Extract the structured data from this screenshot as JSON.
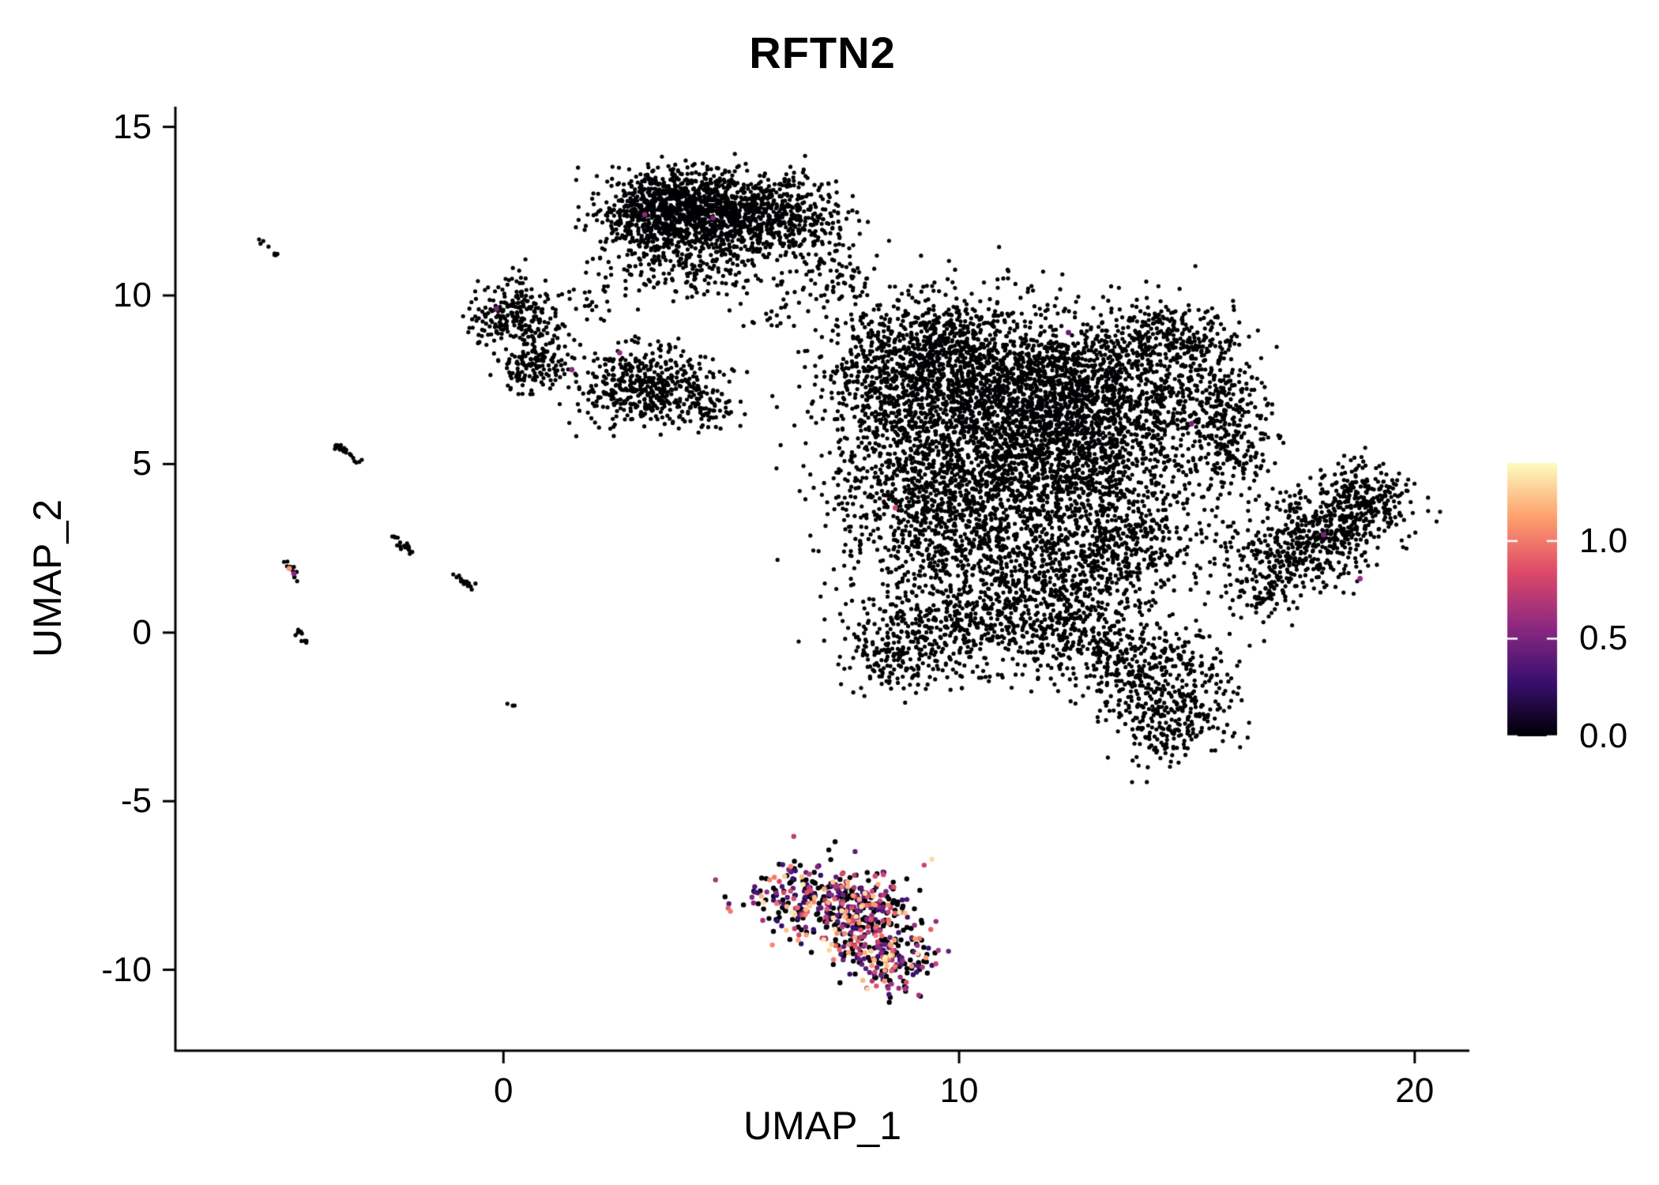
{
  "chart_data": {
    "type": "scatter",
    "title": "RFTN2",
    "xlabel": "UMAP_1",
    "ylabel": "UMAP_2",
    "xlim": [
      -7.2,
      21.2
    ],
    "ylim": [
      -12.4,
      15.6
    ],
    "grid": false,
    "background": "#ffffff",
    "axis_color": "#000000",
    "xticks": [
      {
        "v": 0,
        "label": "0"
      },
      {
        "v": 10,
        "label": "10"
      },
      {
        "v": 20,
        "label": "20"
      }
    ],
    "yticks": [
      {
        "v": 15,
        "label": "15"
      },
      {
        "v": 10,
        "label": "10"
      },
      {
        "v": 5,
        "label": "5"
      },
      {
        "v": 0,
        "label": "0"
      },
      {
        "v": -5,
        "label": "-5"
      },
      {
        "v": -10,
        "label": "-10"
      }
    ],
    "colorbar": {
      "position": "right",
      "range": [
        0,
        1.4
      ],
      "labels": [
        {
          "v": 1.0,
          "label": "1.0"
        },
        {
          "v": 0.5,
          "label": "0.5"
        },
        {
          "v": 0.0,
          "label": "0.0"
        }
      ],
      "stops": [
        [
          0.0,
          "#000004"
        ],
        [
          0.2,
          "#3b0f70"
        ],
        [
          0.4,
          "#8c2981"
        ],
        [
          0.6,
          "#de4968"
        ],
        [
          0.8,
          "#fe9f6d"
        ],
        [
          1.0,
          "#fcfdbf"
        ]
      ]
    },
    "point_radius": 2.6,
    "clusters": [
      {
        "cx": 4.0,
        "cy": 12.9,
        "sx": 0.95,
        "sy": 0.45,
        "n": 600
      },
      {
        "cx": 4.9,
        "cy": 12.1,
        "sx": 1.05,
        "sy": 0.55,
        "n": 650
      },
      {
        "cx": 3.3,
        "cy": 12.2,
        "sx": 0.6,
        "sy": 0.5,
        "n": 300
      },
      {
        "cx": 4.3,
        "cy": 11.0,
        "sx": 0.85,
        "sy": 0.5,
        "n": 170
      },
      {
        "cx": 6.2,
        "cy": 12.7,
        "sx": 0.55,
        "sy": 0.5,
        "n": 170
      },
      {
        "cx": 7.0,
        "cy": 11.6,
        "sx": 0.4,
        "sy": 0.6,
        "n": 60
      },
      {
        "cx": 7.3,
        "cy": 10.2,
        "sx": 0.45,
        "sy": 0.6,
        "n": 60
      },
      {
        "cx": 5.9,
        "cy": 9.9,
        "sx": 0.5,
        "sy": 0.4,
        "n": 30
      },
      {
        "cx": 1.9,
        "cy": 9.8,
        "sx": 0.55,
        "sy": 0.45,
        "n": 25
      },
      {
        "cx": 2.6,
        "cy": 10.8,
        "sx": 0.5,
        "sy": 0.5,
        "n": 25
      },
      {
        "cx": 0.2,
        "cy": 9.4,
        "sx": 0.5,
        "sy": 0.55,
        "n": 240
      },
      {
        "cx": 0.8,
        "cy": 8.4,
        "sx": 0.45,
        "sy": 0.4,
        "n": 60
      },
      {
        "cx": 0.6,
        "cy": 7.8,
        "sx": 0.35,
        "sy": 0.3,
        "n": 90
      },
      {
        "cx": 3.1,
        "cy": 7.3,
        "sx": 0.8,
        "sy": 0.55,
        "n": 480
      },
      {
        "cx": 4.4,
        "cy": 6.7,
        "sx": 0.45,
        "sy": 0.35,
        "n": 60
      },
      {
        "cx": 9.3,
        "cy": 8.1,
        "sx": 1.1,
        "sy": 1.0,
        "n": 850
      },
      {
        "cx": 11.4,
        "cy": 7.3,
        "sx": 1.5,
        "sy": 1.2,
        "n": 1250
      },
      {
        "cx": 13.2,
        "cy": 6.9,
        "sx": 1.1,
        "sy": 1.1,
        "n": 750
      },
      {
        "cx": 10.3,
        "cy": 5.3,
        "sx": 1.3,
        "sy": 1.1,
        "n": 850
      },
      {
        "cx": 12.6,
        "cy": 4.7,
        "sx": 1.3,
        "sy": 1.1,
        "n": 750
      },
      {
        "cx": 9.1,
        "cy": 3.5,
        "sx": 0.95,
        "sy": 0.95,
        "n": 450
      },
      {
        "cx": 11.1,
        "cy": 2.3,
        "sx": 1.2,
        "sy": 0.9,
        "n": 500
      },
      {
        "cx": 13.4,
        "cy": 2.4,
        "sx": 1.0,
        "sy": 0.9,
        "n": 420
      },
      {
        "cx": 9.9,
        "cy": 0.4,
        "sx": 1.1,
        "sy": 0.85,
        "n": 420
      },
      {
        "cx": 12.2,
        "cy": 0.4,
        "sx": 1.0,
        "sy": 0.7,
        "n": 300
      },
      {
        "cx": 14.6,
        "cy": 8.8,
        "sx": 0.75,
        "sy": 0.6,
        "n": 250
      },
      {
        "cx": 15.6,
        "cy": 7.0,
        "sx": 0.55,
        "sy": 1.0,
        "n": 240
      },
      {
        "cx": 16.1,
        "cy": 5.6,
        "sx": 0.4,
        "sy": 0.8,
        "n": 130
      },
      {
        "cx": 13.9,
        "cy": -0.9,
        "sx": 1.0,
        "sy": 0.6,
        "n": 300
      },
      {
        "cx": 14.7,
        "cy": -2.4,
        "sx": 0.7,
        "sy": 0.75,
        "n": 300
      },
      {
        "cx": 8.2,
        "cy": 6.1,
        "sx": 0.7,
        "sy": 1.1,
        "n": 180
      },
      {
        "cx": 8.6,
        "cy": -0.6,
        "sx": 0.6,
        "sy": 0.6,
        "n": 180
      },
      {
        "cx": 17.2,
        "cy": 2.3,
        "sx": 0.7,
        "sy": 0.6,
        "n": 300
      },
      {
        "cx": 18.3,
        "cy": 3.3,
        "sx": 0.7,
        "sy": 0.6,
        "n": 300
      },
      {
        "cx": 19.0,
        "cy": 4.1,
        "sx": 0.5,
        "sy": 0.5,
        "n": 160
      },
      {
        "cx": 16.6,
        "cy": 1.1,
        "sx": 0.4,
        "sy": 0.4,
        "n": 70
      },
      {
        "cx": 7.0,
        "cy": -7.8,
        "sx": 0.9,
        "sy": 0.5,
        "n": 280,
        "r": 3.2,
        "expr": {
          "frac": 0.55,
          "min": 0.25,
          "max": 1.35
        }
      },
      {
        "cx": 7.8,
        "cy": -8.7,
        "sx": 0.7,
        "sy": 0.55,
        "n": 220,
        "r": 3.2,
        "expr": {
          "frac": 0.55,
          "min": 0.25,
          "max": 1.35
        }
      },
      {
        "cx": 8.6,
        "cy": -9.7,
        "sx": 0.45,
        "sy": 0.5,
        "n": 150,
        "r": 3.2,
        "expr": {
          "frac": 0.55,
          "min": 0.25,
          "max": 1.35
        }
      }
    ],
    "streaks": [
      {
        "x1": -5.4,
        "y1": 11.7,
        "x2": -5.0,
        "y2": 11.2,
        "n": 8
      },
      {
        "x1": -3.7,
        "y1": 5.6,
        "x2": -3.1,
        "y2": 5.0,
        "n": 24
      },
      {
        "x1": -2.5,
        "y1": 2.9,
        "x2": -2.0,
        "y2": 2.4,
        "n": 18
      },
      {
        "x1": -1.1,
        "y1": 1.7,
        "x2": -0.6,
        "y2": 1.3,
        "n": 16
      },
      {
        "x1": -4.8,
        "y1": 2.1,
        "x2": -4.5,
        "y2": 1.6,
        "n": 14
      },
      {
        "x1": -4.5,
        "y1": 0.1,
        "x2": -4.3,
        "y2": -0.4,
        "n": 9
      },
      {
        "x1": 0.15,
        "y1": -2.05,
        "x2": 0.3,
        "y2": -2.2,
        "n": 3
      }
    ],
    "highlight_points": [
      {
        "x": 3.1,
        "y": 12.4,
        "v": 0.55
      },
      {
        "x": 4.6,
        "y": 12.3,
        "v": 0.5
      },
      {
        "x": -0.15,
        "y": 9.6,
        "v": 0.5
      },
      {
        "x": 1.5,
        "y": 7.8,
        "v": 0.55
      },
      {
        "x": 2.55,
        "y": 8.3,
        "v": 0.6
      },
      {
        "x": 8.6,
        "y": 3.7,
        "v": 0.8
      },
      {
        "x": 15.1,
        "y": 6.2,
        "v": 0.5
      },
      {
        "x": 12.4,
        "y": 8.9,
        "v": 0.45
      },
      {
        "x": 18.0,
        "y": 2.9,
        "v": 0.5
      },
      {
        "x": 18.8,
        "y": 1.6,
        "v": 0.6
      },
      {
        "x": -4.7,
        "y": 1.9,
        "v": 1.1
      },
      {
        "x": -4.6,
        "y": 1.75,
        "v": 0.55
      }
    ]
  }
}
